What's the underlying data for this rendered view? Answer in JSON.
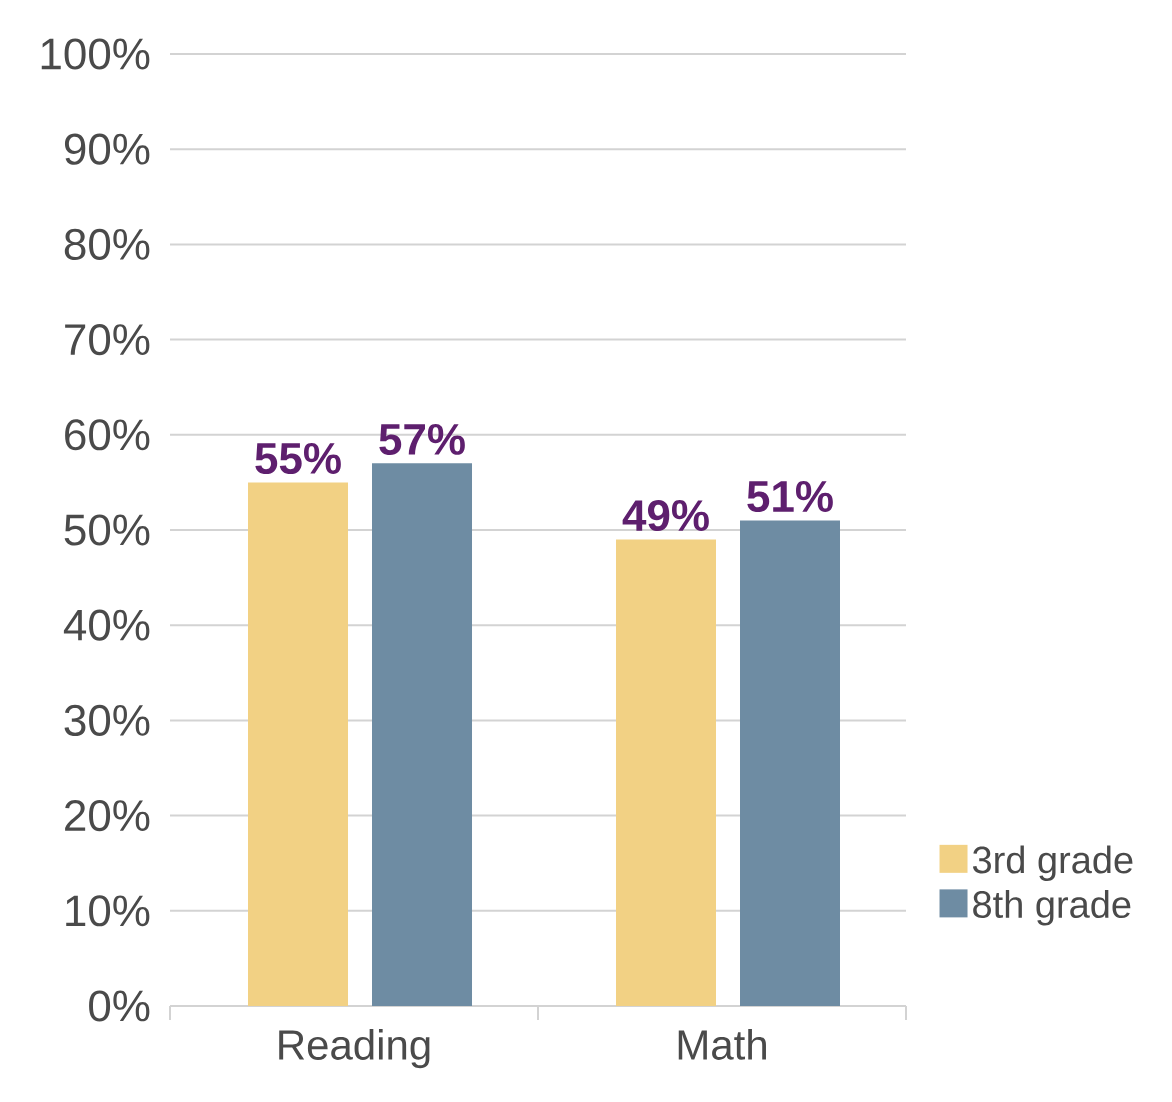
{
  "chart_data": {
    "type": "bar",
    "categories": [
      "Reading",
      "Math"
    ],
    "series": [
      {
        "name": "3rd grade",
        "color": "#f2d184",
        "values": [
          55,
          49
        ],
        "value_labels": [
          "55%",
          "49%"
        ]
      },
      {
        "name": "8th grade",
        "color": "#6e8ca3",
        "values": [
          57,
          51
        ],
        "value_labels": [
          "57%",
          "51%"
        ]
      }
    ],
    "ylim": [
      0,
      100
    ],
    "yticks": [
      {
        "value": 0,
        "label": "0%"
      },
      {
        "value": 10,
        "label": "10%"
      },
      {
        "value": 20,
        "label": "20%"
      },
      {
        "value": 30,
        "label": "30%"
      },
      {
        "value": 40,
        "label": "40%"
      },
      {
        "value": 50,
        "label": "50%"
      },
      {
        "value": 60,
        "label": "60%"
      },
      {
        "value": 70,
        "label": "70%"
      },
      {
        "value": 80,
        "label": "80%"
      },
      {
        "value": 90,
        "label": "90%"
      },
      {
        "value": 100,
        "label": "100%"
      }
    ],
    "grid": "y",
    "legend": "bottom right"
  }
}
